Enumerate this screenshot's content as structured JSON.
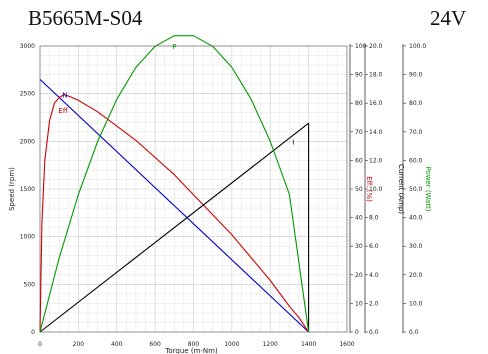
{
  "chart_data": {
    "type": "line",
    "title": "B5665M-S04",
    "voltage_label": "24V",
    "xlabel": "Torque (m-Nm)",
    "xlim": [
      0,
      1600
    ],
    "x_ticks": [
      "0",
      "200",
      "400",
      "600",
      "800",
      "1000",
      "1200",
      "1400",
      "1600"
    ],
    "grid": true,
    "axes": {
      "speed": {
        "label": "Speed (rpm)",
        "range": [
          0,
          3000
        ],
        "ticks": [
          "0",
          "500",
          "1000",
          "1500",
          "2000",
          "2500",
          "3000"
        ],
        "color": "#000000"
      },
      "efficiency": {
        "label": "Eff. (%)",
        "range": [
          0,
          100
        ],
        "ticks": [
          "0",
          "10",
          "20",
          "30",
          "40",
          "50",
          "60",
          "70",
          "80",
          "90",
          "100"
        ],
        "color": "#cc0000"
      },
      "current": {
        "label": "Current (Amp)",
        "range": [
          0,
          20
        ],
        "ticks": [
          "0.0",
          "2.0",
          "4.0",
          "6.0",
          "8.0",
          "10.0",
          "12.0",
          "14.0",
          "16.0",
          "18.0",
          "20.0"
        ],
        "color": "#000000"
      },
      "power": {
        "label": "Power (Watt)",
        "range": [
          0,
          100
        ],
        "ticks": [
          "0.0",
          "10.0",
          "20.0",
          "30.0",
          "40.0",
          "50.0",
          "60.0",
          "70.0",
          "80.0",
          "90.0",
          "100.0"
        ],
        "color": "#009900"
      }
    },
    "series": [
      {
        "name": "N",
        "axis": "speed",
        "color": "#0000cc",
        "x": [
          0,
          1400
        ],
        "y": [
          2650,
          0
        ]
      },
      {
        "name": "Eff",
        "axis": "efficiency",
        "color": "#cc0000",
        "x": [
          0,
          10,
          25,
          50,
          75,
          100,
          125,
          150,
          200,
          300,
          400,
          500,
          600,
          700,
          800,
          900,
          1000,
          1100,
          1200,
          1300,
          1350,
          1400
        ],
        "y": [
          0,
          38,
          60,
          74,
          80,
          82,
          83,
          82.5,
          81,
          77,
          72,
          67,
          61,
          55,
          48,
          41,
          34,
          26,
          18,
          9,
          5,
          0
        ]
      },
      {
        "name": "I",
        "axis": "current",
        "color": "#000000",
        "x": [
          0,
          1400,
          1400
        ],
        "y": [
          0,
          14.6,
          0
        ]
      },
      {
        "name": "P",
        "axis": "power",
        "color": "#009900",
        "x": [
          0,
          100,
          200,
          300,
          400,
          500,
          600,
          700,
          800,
          900,
          1000,
          1100,
          1200,
          1300,
          1400
        ],
        "y": [
          0,
          25.9,
          48.1,
          66.6,
          81.4,
          92.5,
          99.9,
          103.6,
          103.6,
          99.9,
          92.5,
          81.4,
          66.6,
          48.1,
          0
        ]
      }
    ],
    "annotations": [
      {
        "text": "N",
        "color": "#0000cc",
        "x": 130,
        "y_rpm": 2490
      },
      {
        "text": "Eff",
        "color": "#cc0000",
        "x": 120,
        "y_rpm": 2330
      },
      {
        "text": "P",
        "color": "#009900",
        "x": 700,
        "y_rpm": 3000
      },
      {
        "text": "I",
        "color": "#000000",
        "x": 1320,
        "y_rpm": 2000
      }
    ]
  }
}
